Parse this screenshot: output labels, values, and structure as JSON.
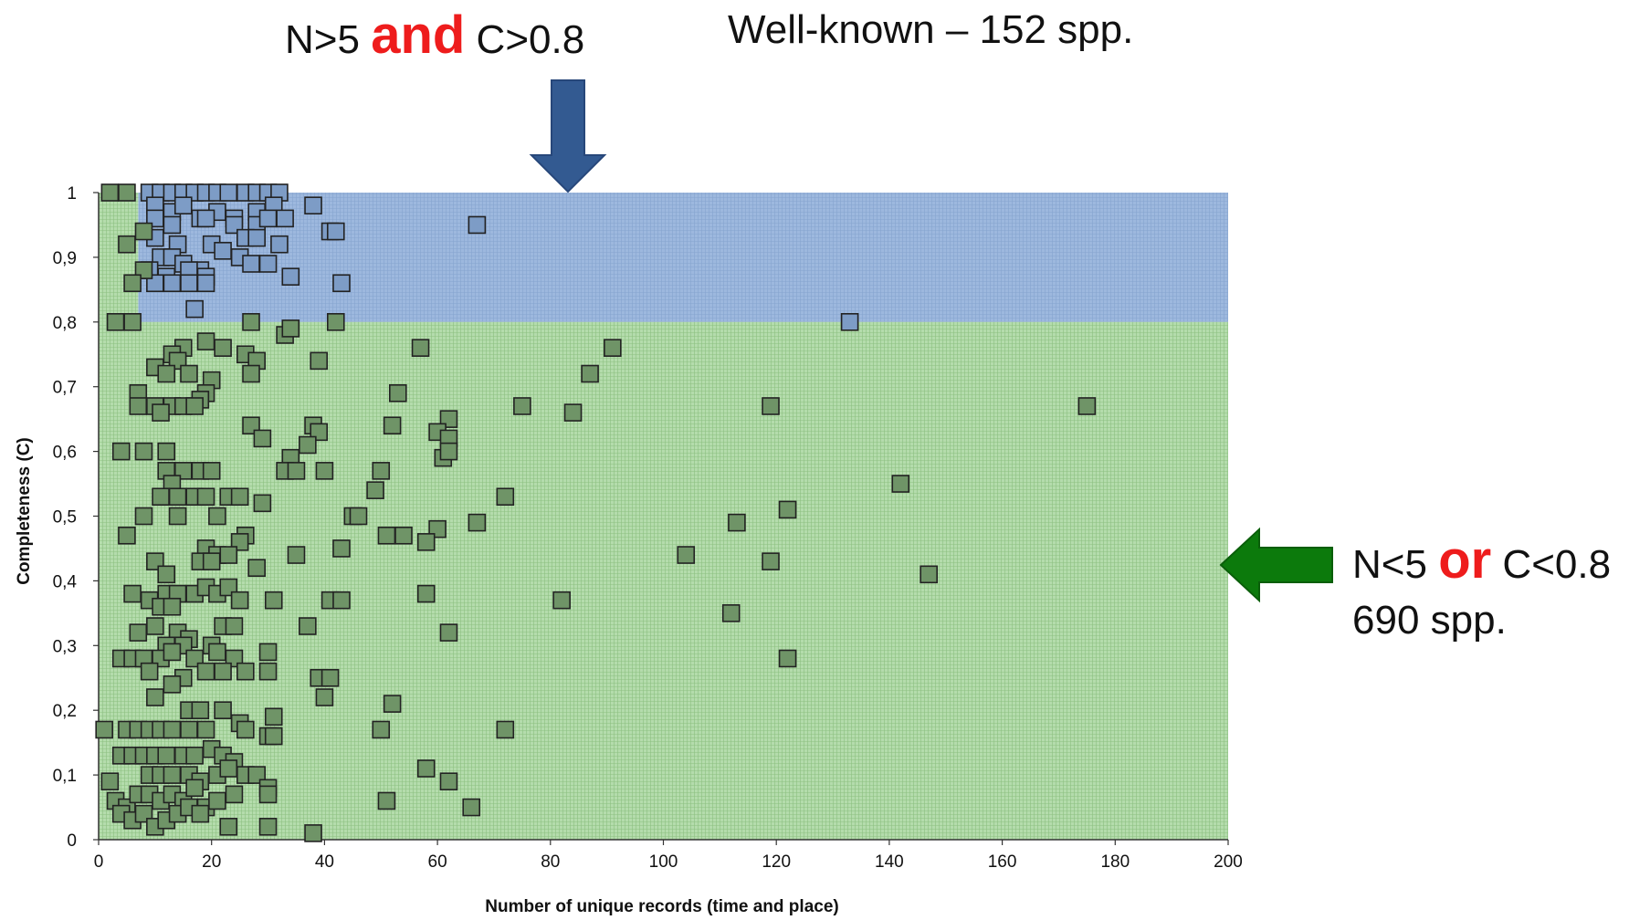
{
  "annotations": {
    "top_left_part1": "N>5",
    "top_left_emph": "and",
    "top_left_part2": "C>0.8",
    "top_right": "Well-known – 152 spp.",
    "right_part1": "N<5",
    "right_emph": "or",
    "right_part2": "C<0.8",
    "right_line2": "690 spp."
  },
  "colors": {
    "blue_region": "#9db8de",
    "green_region": "#b4dcac",
    "blue_marker": "#7d9cc6",
    "green_marker": "#6f9467",
    "marker_stroke": "#222222",
    "blue_arrow": "#335a91",
    "green_arrow": "#0c7a0c",
    "emphasis": "#ee1c1c"
  },
  "chart_data": {
    "type": "scatter",
    "xlabel": "Number of unique records (time and place)",
    "ylabel": "Completeness (C)",
    "xlim": [
      0,
      200
    ],
    "ylim": [
      0,
      1
    ],
    "x_ticks": [
      "0",
      "20",
      "40",
      "60",
      "80",
      "100",
      "120",
      "140",
      "160",
      "180",
      "200"
    ],
    "y_ticks": [
      "0",
      "0,1",
      "0,2",
      "0,3",
      "0,4",
      "0,5",
      "0,6",
      "0,7",
      "0,8",
      "0,9",
      "1"
    ],
    "regions": [
      {
        "x": [
          7,
          200
        ],
        "y": [
          0.8,
          1.0
        ],
        "color": "blue"
      },
      {
        "x": [
          0,
          200
        ],
        "y": [
          0,
          0.8
        ],
        "color": "green"
      },
      {
        "x": [
          0,
          7
        ],
        "y": [
          0.8,
          1.0
        ],
        "color": "green"
      }
    ],
    "series": [
      {
        "color": "blue",
        "points": [
          [
            9,
            1.0
          ],
          [
            11,
            1.0
          ],
          [
            13,
            1.0
          ],
          [
            15,
            1.0
          ],
          [
            17,
            1.0
          ],
          [
            19,
            1.0
          ],
          [
            21,
            1.0
          ],
          [
            23,
            1.0
          ],
          [
            26,
            1.0
          ],
          [
            28,
            1.0
          ],
          [
            30,
            1.0
          ],
          [
            32,
            1.0
          ],
          [
            10,
            0.98
          ],
          [
            13,
            0.97
          ],
          [
            15,
            0.98
          ],
          [
            18,
            0.96
          ],
          [
            21,
            0.97
          ],
          [
            24,
            0.96
          ],
          [
            28,
            0.97
          ],
          [
            31,
            0.98
          ],
          [
            38,
            0.98
          ],
          [
            10,
            0.96
          ],
          [
            13,
            0.95
          ],
          [
            19,
            0.96
          ],
          [
            24,
            0.95
          ],
          [
            28,
            0.95
          ],
          [
            30,
            0.96
          ],
          [
            33,
            0.96
          ],
          [
            41,
            0.94
          ],
          [
            42,
            0.94
          ],
          [
            67,
            0.95
          ],
          [
            10,
            0.93
          ],
          [
            14,
            0.92
          ],
          [
            20,
            0.92
          ],
          [
            26,
            0.93
          ],
          [
            28,
            0.93
          ],
          [
            32,
            0.92
          ],
          [
            11,
            0.9
          ],
          [
            13,
            0.9
          ],
          [
            15,
            0.89
          ],
          [
            18,
            0.88
          ],
          [
            22,
            0.91
          ],
          [
            25,
            0.9
          ],
          [
            27,
            0.89
          ],
          [
            30,
            0.89
          ],
          [
            9,
            0.88
          ],
          [
            12,
            0.87
          ],
          [
            16,
            0.88
          ],
          [
            19,
            0.87
          ],
          [
            34,
            0.87
          ],
          [
            10,
            0.86
          ],
          [
            13,
            0.86
          ],
          [
            16,
            0.86
          ],
          [
            19,
            0.86
          ],
          [
            43,
            0.86
          ],
          [
            17,
            0.82
          ],
          [
            133,
            0.8
          ]
        ]
      },
      {
        "color": "green",
        "points": [
          [
            2,
            1.0
          ],
          [
            5,
            1.0
          ],
          [
            8,
            0.94
          ],
          [
            5,
            0.92
          ],
          [
            8,
            0.88
          ],
          [
            6,
            0.86
          ],
          [
            3,
            0.8
          ],
          [
            6,
            0.8
          ],
          [
            27,
            0.8
          ],
          [
            42,
            0.8
          ],
          [
            19,
            0.77
          ],
          [
            15,
            0.76
          ],
          [
            22,
            0.76
          ],
          [
            26,
            0.75
          ],
          [
            57,
            0.76
          ],
          [
            91,
            0.76
          ],
          [
            33,
            0.78
          ],
          [
            34,
            0.79
          ],
          [
            13,
            0.75
          ],
          [
            10,
            0.73
          ],
          [
            14,
            0.74
          ],
          [
            28,
            0.74
          ],
          [
            39,
            0.74
          ],
          [
            12,
            0.72
          ],
          [
            16,
            0.72
          ],
          [
            20,
            0.71
          ],
          [
            27,
            0.72
          ],
          [
            87,
            0.72
          ],
          [
            7,
            0.69
          ],
          [
            53,
            0.69
          ],
          [
            19,
            0.69
          ],
          [
            18,
            0.68
          ],
          [
            7,
            0.67
          ],
          [
            10,
            0.67
          ],
          [
            13,
            0.67
          ],
          [
            15,
            0.67
          ],
          [
            17,
            0.67
          ],
          [
            75,
            0.67
          ],
          [
            84,
            0.66
          ],
          [
            119,
            0.67
          ],
          [
            175,
            0.67
          ],
          [
            11,
            0.66
          ],
          [
            62,
            0.65
          ],
          [
            27,
            0.64
          ],
          [
            38,
            0.64
          ],
          [
            39,
            0.63
          ],
          [
            52,
            0.64
          ],
          [
            60,
            0.63
          ],
          [
            29,
            0.62
          ],
          [
            37,
            0.61
          ],
          [
            62,
            0.62
          ],
          [
            61,
            0.59
          ],
          [
            62,
            0.6
          ],
          [
            4,
            0.6
          ],
          [
            8,
            0.6
          ],
          [
            12,
            0.6
          ],
          [
            34,
            0.59
          ],
          [
            33,
            0.57
          ],
          [
            35,
            0.57
          ],
          [
            40,
            0.57
          ],
          [
            50,
            0.57
          ],
          [
            12,
            0.57
          ],
          [
            15,
            0.57
          ],
          [
            18,
            0.57
          ],
          [
            20,
            0.57
          ],
          [
            13,
            0.55
          ],
          [
            11,
            0.53
          ],
          [
            14,
            0.53
          ],
          [
            17,
            0.53
          ],
          [
            19,
            0.53
          ],
          [
            23,
            0.53
          ],
          [
            25,
            0.53
          ],
          [
            29,
            0.52
          ],
          [
            8,
            0.5
          ],
          [
            14,
            0.5
          ],
          [
            21,
            0.5
          ],
          [
            45,
            0.5
          ],
          [
            46,
            0.5
          ],
          [
            49,
            0.54
          ],
          [
            72,
            0.53
          ],
          [
            142,
            0.55
          ],
          [
            122,
            0.51
          ],
          [
            67,
            0.49
          ],
          [
            5,
            0.47
          ],
          [
            26,
            0.47
          ],
          [
            51,
            0.47
          ],
          [
            54,
            0.47
          ],
          [
            60,
            0.48
          ],
          [
            58,
            0.46
          ],
          [
            113,
            0.49
          ],
          [
            25,
            0.46
          ],
          [
            19,
            0.45
          ],
          [
            21,
            0.44
          ],
          [
            23,
            0.44
          ],
          [
            43,
            0.45
          ],
          [
            18,
            0.43
          ],
          [
            20,
            0.43
          ],
          [
            35,
            0.44
          ],
          [
            104,
            0.44
          ],
          [
            119,
            0.43
          ],
          [
            147,
            0.41
          ],
          [
            10,
            0.43
          ],
          [
            12,
            0.41
          ],
          [
            28,
            0.42
          ],
          [
            6,
            0.38
          ],
          [
            9,
            0.37
          ],
          [
            12,
            0.38
          ],
          [
            14,
            0.38
          ],
          [
            17,
            0.38
          ],
          [
            19,
            0.39
          ],
          [
            21,
            0.38
          ],
          [
            23,
            0.39
          ],
          [
            25,
            0.37
          ],
          [
            31,
            0.37
          ],
          [
            41,
            0.37
          ],
          [
            43,
            0.37
          ],
          [
            58,
            0.38
          ],
          [
            82,
            0.37
          ],
          [
            11,
            0.36
          ],
          [
            13,
            0.36
          ],
          [
            7,
            0.32
          ],
          [
            10,
            0.33
          ],
          [
            14,
            0.32
          ],
          [
            16,
            0.31
          ],
          [
            22,
            0.33
          ],
          [
            24,
            0.33
          ],
          [
            37,
            0.33
          ],
          [
            62,
            0.32
          ],
          [
            112,
            0.35
          ],
          [
            12,
            0.3
          ],
          [
            15,
            0.3
          ],
          [
            20,
            0.3
          ],
          [
            4,
            0.28
          ],
          [
            6,
            0.28
          ],
          [
            8,
            0.28
          ],
          [
            11,
            0.28
          ],
          [
            13,
            0.29
          ],
          [
            17,
            0.28
          ],
          [
            21,
            0.29
          ],
          [
            24,
            0.28
          ],
          [
            30,
            0.29
          ],
          [
            122,
            0.28
          ],
          [
            9,
            0.26
          ],
          [
            15,
            0.25
          ],
          [
            19,
            0.26
          ],
          [
            22,
            0.26
          ],
          [
            26,
            0.26
          ],
          [
            30,
            0.26
          ],
          [
            39,
            0.25
          ],
          [
            41,
            0.25
          ],
          [
            13,
            0.24
          ],
          [
            10,
            0.22
          ],
          [
            40,
            0.22
          ],
          [
            52,
            0.21
          ],
          [
            16,
            0.2
          ],
          [
            18,
            0.2
          ],
          [
            22,
            0.2
          ],
          [
            31,
            0.19
          ],
          [
            25,
            0.18
          ],
          [
            26,
            0.17
          ],
          [
            1,
            0.17
          ],
          [
            5,
            0.17
          ],
          [
            7,
            0.17
          ],
          [
            9,
            0.17
          ],
          [
            11,
            0.17
          ],
          [
            13,
            0.17
          ],
          [
            16,
            0.17
          ],
          [
            19,
            0.17
          ],
          [
            30,
            0.16
          ],
          [
            31,
            0.16
          ],
          [
            50,
            0.17
          ],
          [
            72,
            0.17
          ],
          [
            4,
            0.13
          ],
          [
            6,
            0.13
          ],
          [
            8,
            0.13
          ],
          [
            10,
            0.13
          ],
          [
            12,
            0.13
          ],
          [
            15,
            0.13
          ],
          [
            17,
            0.13
          ],
          [
            20,
            0.14
          ],
          [
            22,
            0.13
          ],
          [
            24,
            0.12
          ],
          [
            2,
            0.09
          ],
          [
            9,
            0.1
          ],
          [
            11,
            0.1
          ],
          [
            13,
            0.1
          ],
          [
            16,
            0.1
          ],
          [
            18,
            0.09
          ],
          [
            21,
            0.1
          ],
          [
            23,
            0.11
          ],
          [
            26,
            0.1
          ],
          [
            28,
            0.1
          ],
          [
            58,
            0.11
          ],
          [
            62,
            0.09
          ],
          [
            30,
            0.08
          ],
          [
            3,
            0.06
          ],
          [
            5,
            0.05
          ],
          [
            7,
            0.07
          ],
          [
            9,
            0.07
          ],
          [
            11,
            0.06
          ],
          [
            13,
            0.07
          ],
          [
            15,
            0.06
          ],
          [
            17,
            0.08
          ],
          [
            19,
            0.05
          ],
          [
            21,
            0.06
          ],
          [
            24,
            0.07
          ],
          [
            30,
            0.07
          ],
          [
            51,
            0.06
          ],
          [
            66,
            0.05
          ],
          [
            4,
            0.04
          ],
          [
            6,
            0.03
          ],
          [
            8,
            0.04
          ],
          [
            10,
            0.02
          ],
          [
            12,
            0.03
          ],
          [
            14,
            0.04
          ],
          [
            16,
            0.05
          ],
          [
            18,
            0.04
          ],
          [
            23,
            0.02
          ],
          [
            30,
            0.02
          ],
          [
            38,
            0.01
          ]
        ]
      }
    ]
  }
}
